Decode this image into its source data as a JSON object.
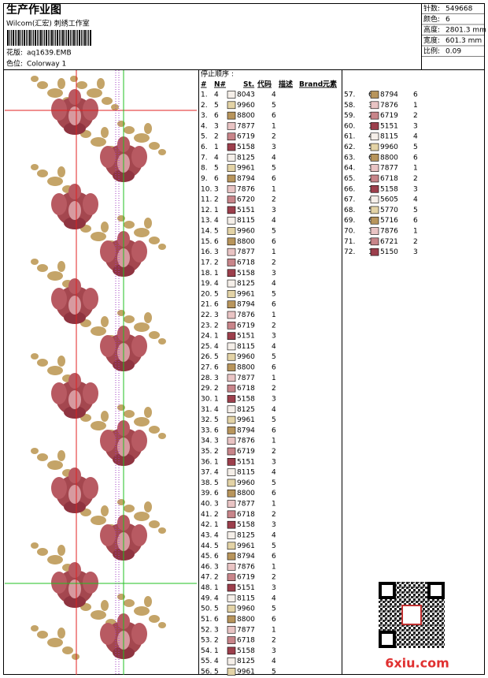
{
  "header": {
    "title": "生产作业图",
    "studio": "Wilcom(汇宏) 刺绣工作室",
    "design_label": "花版:",
    "design": "aq1639.EMB",
    "colorway_label": "色位:",
    "colorway": "Colorway 1"
  },
  "stats": [
    [
      "针数:",
      "549668"
    ],
    [
      "颜色:",
      "6"
    ],
    [
      "高度:",
      "2801.3 mm"
    ],
    [
      "宽度:",
      "601.3 mm"
    ],
    [
      "比例:",
      "0.09"
    ]
  ],
  "table": {
    "caption": "停止顺序 :",
    "columns": [
      "#",
      "N#",
      "St.",
      "代码",
      "描述",
      "Brand",
      "元素"
    ],
    "needle_colors": {
      "1": "#9c3f4c",
      "2": "#c8858a",
      "3": "#e9c4c4",
      "4": "#f5efe9",
      "5": "#e3d3a6",
      "6": "#b8955c"
    },
    "rows": [
      [
        "1.",
        "4",
        "8043",
        "4"
      ],
      [
        "2.",
        "5",
        "9960",
        "5"
      ],
      [
        "3.",
        "6",
        "8800",
        "6"
      ],
      [
        "4.",
        "3",
        "7877",
        "1"
      ],
      [
        "5.",
        "2",
        "6719",
        "2"
      ],
      [
        "6.",
        "1",
        "5158",
        "3"
      ],
      [
        "7.",
        "4",
        "8125",
        "4"
      ],
      [
        "8.",
        "5",
        "9961",
        "5"
      ],
      [
        "9.",
        "6",
        "8794",
        "6"
      ],
      [
        "10.",
        "3",
        "7876",
        "1"
      ],
      [
        "11.",
        "2",
        "6720",
        "2"
      ],
      [
        "12.",
        "1",
        "5151",
        "3"
      ],
      [
        "13.",
        "4",
        "8115",
        "4"
      ],
      [
        "14.",
        "5",
        "9960",
        "5"
      ],
      [
        "15.",
        "6",
        "8800",
        "6"
      ],
      [
        "16.",
        "3",
        "7877",
        "1"
      ],
      [
        "17.",
        "2",
        "6718",
        "2"
      ],
      [
        "18.",
        "1",
        "5158",
        "3"
      ],
      [
        "19.",
        "4",
        "8125",
        "4"
      ],
      [
        "20.",
        "5",
        "9961",
        "5"
      ],
      [
        "21.",
        "6",
        "8794",
        "6"
      ],
      [
        "22.",
        "3",
        "7876",
        "1"
      ],
      [
        "23.",
        "2",
        "6719",
        "2"
      ],
      [
        "24.",
        "1",
        "5151",
        "3"
      ],
      [
        "25.",
        "4",
        "8115",
        "4"
      ],
      [
        "26.",
        "5",
        "9960",
        "5"
      ],
      [
        "27.",
        "6",
        "8800",
        "6"
      ],
      [
        "28.",
        "3",
        "7877",
        "1"
      ],
      [
        "29.",
        "2",
        "6718",
        "2"
      ],
      [
        "30.",
        "1",
        "5158",
        "3"
      ],
      [
        "31.",
        "4",
        "8125",
        "4"
      ],
      [
        "32.",
        "5",
        "9961",
        "5"
      ],
      [
        "33.",
        "6",
        "8794",
        "6"
      ],
      [
        "34.",
        "3",
        "7876",
        "1"
      ],
      [
        "35.",
        "2",
        "6719",
        "2"
      ],
      [
        "36.",
        "1",
        "5151",
        "3"
      ],
      [
        "37.",
        "4",
        "8115",
        "4"
      ],
      [
        "38.",
        "5",
        "9960",
        "5"
      ],
      [
        "39.",
        "6",
        "8800",
        "6"
      ],
      [
        "40.",
        "3",
        "7877",
        "1"
      ],
      [
        "41.",
        "2",
        "6718",
        "2"
      ],
      [
        "42.",
        "1",
        "5158",
        "3"
      ],
      [
        "43.",
        "4",
        "8125",
        "4"
      ],
      [
        "44.",
        "5",
        "9961",
        "5"
      ],
      [
        "45.",
        "6",
        "8794",
        "6"
      ],
      [
        "46.",
        "3",
        "7876",
        "1"
      ],
      [
        "47.",
        "2",
        "6719",
        "2"
      ],
      [
        "48.",
        "1",
        "5151",
        "3"
      ],
      [
        "49.",
        "4",
        "8115",
        "4"
      ],
      [
        "50.",
        "5",
        "9960",
        "5"
      ],
      [
        "51.",
        "6",
        "8800",
        "6"
      ],
      [
        "52.",
        "3",
        "7877",
        "1"
      ],
      [
        "53.",
        "2",
        "6718",
        "2"
      ],
      [
        "54.",
        "1",
        "5158",
        "3"
      ],
      [
        "55.",
        "4",
        "8125",
        "4"
      ],
      [
        "56.",
        "5",
        "9961",
        "5"
      ],
      [
        "57.",
        "6",
        "8794",
        "6"
      ],
      [
        "58.",
        "3",
        "7876",
        "1"
      ],
      [
        "59.",
        "2",
        "6719",
        "2"
      ],
      [
        "60.",
        "1",
        "5151",
        "3"
      ],
      [
        "61.",
        "4",
        "8115",
        "4"
      ],
      [
        "62.",
        "5",
        "9960",
        "5"
      ],
      [
        "63.",
        "6",
        "8800",
        "6"
      ],
      [
        "64.",
        "3",
        "7877",
        "1"
      ],
      [
        "65.",
        "2",
        "6718",
        "2"
      ],
      [
        "66.",
        "1",
        "5158",
        "3"
      ],
      [
        "67.",
        "4",
        "5605",
        "4"
      ],
      [
        "68.",
        "5",
        "5770",
        "5"
      ],
      [
        "69.",
        "6",
        "5716",
        "6"
      ],
      [
        "70.",
        "3",
        "7876",
        "1"
      ],
      [
        "71.",
        "2",
        "6721",
        "2"
      ],
      [
        "72.",
        "1",
        "5150",
        "3"
      ]
    ]
  },
  "watermark": "6xiu.com"
}
